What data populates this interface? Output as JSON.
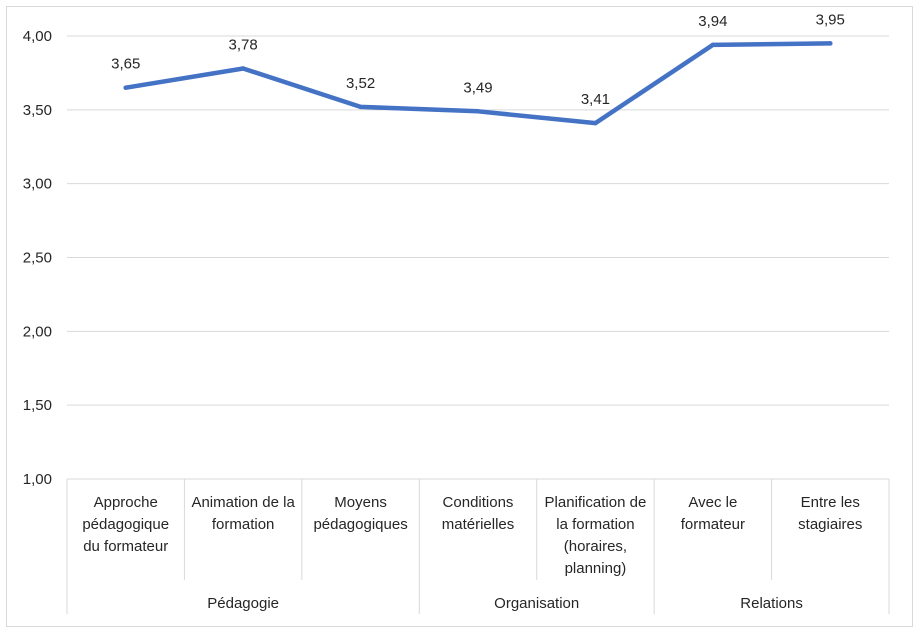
{
  "chart_data": {
    "type": "line",
    "title": "",
    "xlabel": "",
    "ylabel": "",
    "ylim": [
      1.0,
      4.0
    ],
    "ytick_step": 0.5,
    "ytick_labels": [
      "1,00",
      "1,50",
      "2,00",
      "2,50",
      "3,00",
      "3,50",
      "4,00"
    ],
    "grid": true,
    "legend": "none",
    "categories": [
      {
        "lines": [
          "Approche",
          "pédagogique",
          "du formateur"
        ]
      },
      {
        "lines": [
          "Animation de la",
          "formation"
        ]
      },
      {
        "lines": [
          "Moyens",
          "pédagogiques"
        ]
      },
      {
        "lines": [
          "Conditions",
          "matérielles"
        ]
      },
      {
        "lines": [
          "Planification de",
          "la formation",
          "(horaires,",
          "planning)"
        ]
      },
      {
        "lines": [
          "Avec le",
          "formateur"
        ]
      },
      {
        "lines": [
          "Entre les",
          "stagiaires"
        ]
      }
    ],
    "groups": [
      {
        "label": "Pédagogie",
        "count": 3
      },
      {
        "label": "Organisation",
        "count": 2
      },
      {
        "label": "Relations",
        "count": 2
      }
    ],
    "series": [
      {
        "values": [
          3.65,
          3.78,
          3.52,
          3.49,
          3.41,
          3.94,
          3.95
        ],
        "labels": [
          "3,65",
          "3,78",
          "3,52",
          "3,49",
          "3,41",
          "3,94",
          "3,95"
        ],
        "color": "#4472c4"
      }
    ],
    "colors": {
      "grid": "#d9d9d9",
      "axis": "#d9d9d9",
      "text": "#262626"
    }
  }
}
